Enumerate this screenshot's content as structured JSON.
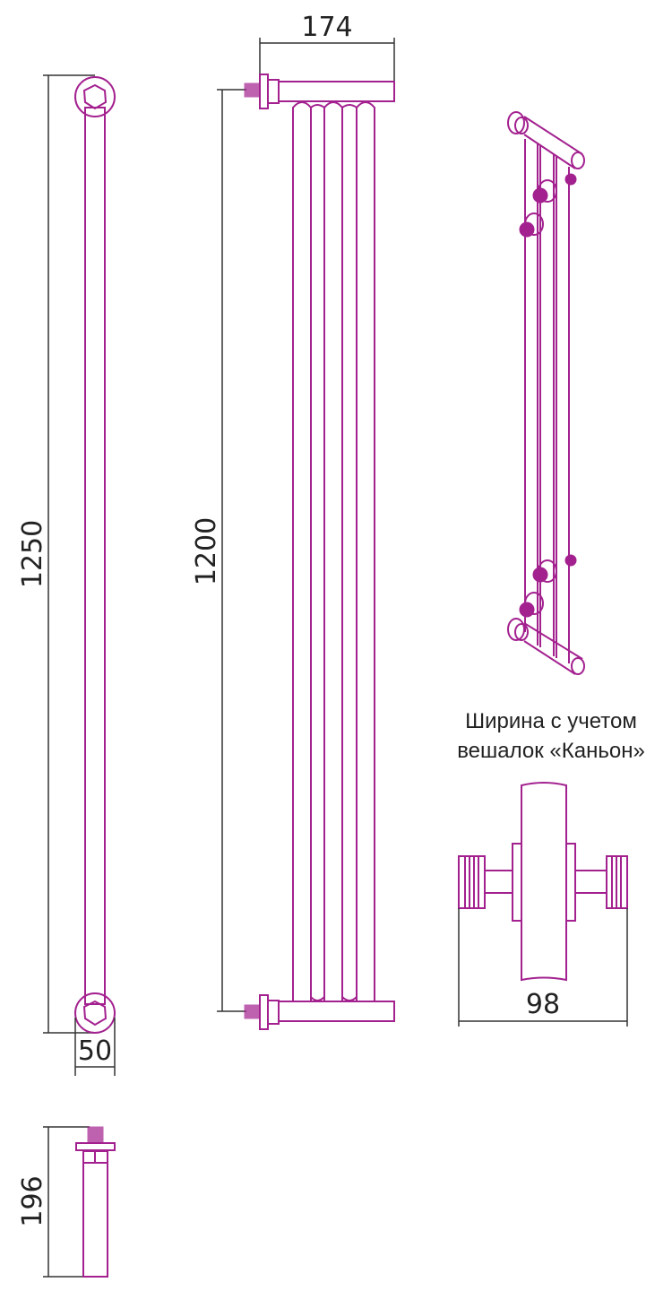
{
  "colors": {
    "product": "#a3218f",
    "dimension": "#333333"
  },
  "dimensions": {
    "height_total": "1250",
    "height_axis": "1200",
    "width": "174",
    "diameter": "50",
    "depth": "196",
    "hanger_width": "98"
  },
  "caption": {
    "line1": "Ширина с учетом",
    "line2": "вешалок «Каньон»"
  }
}
